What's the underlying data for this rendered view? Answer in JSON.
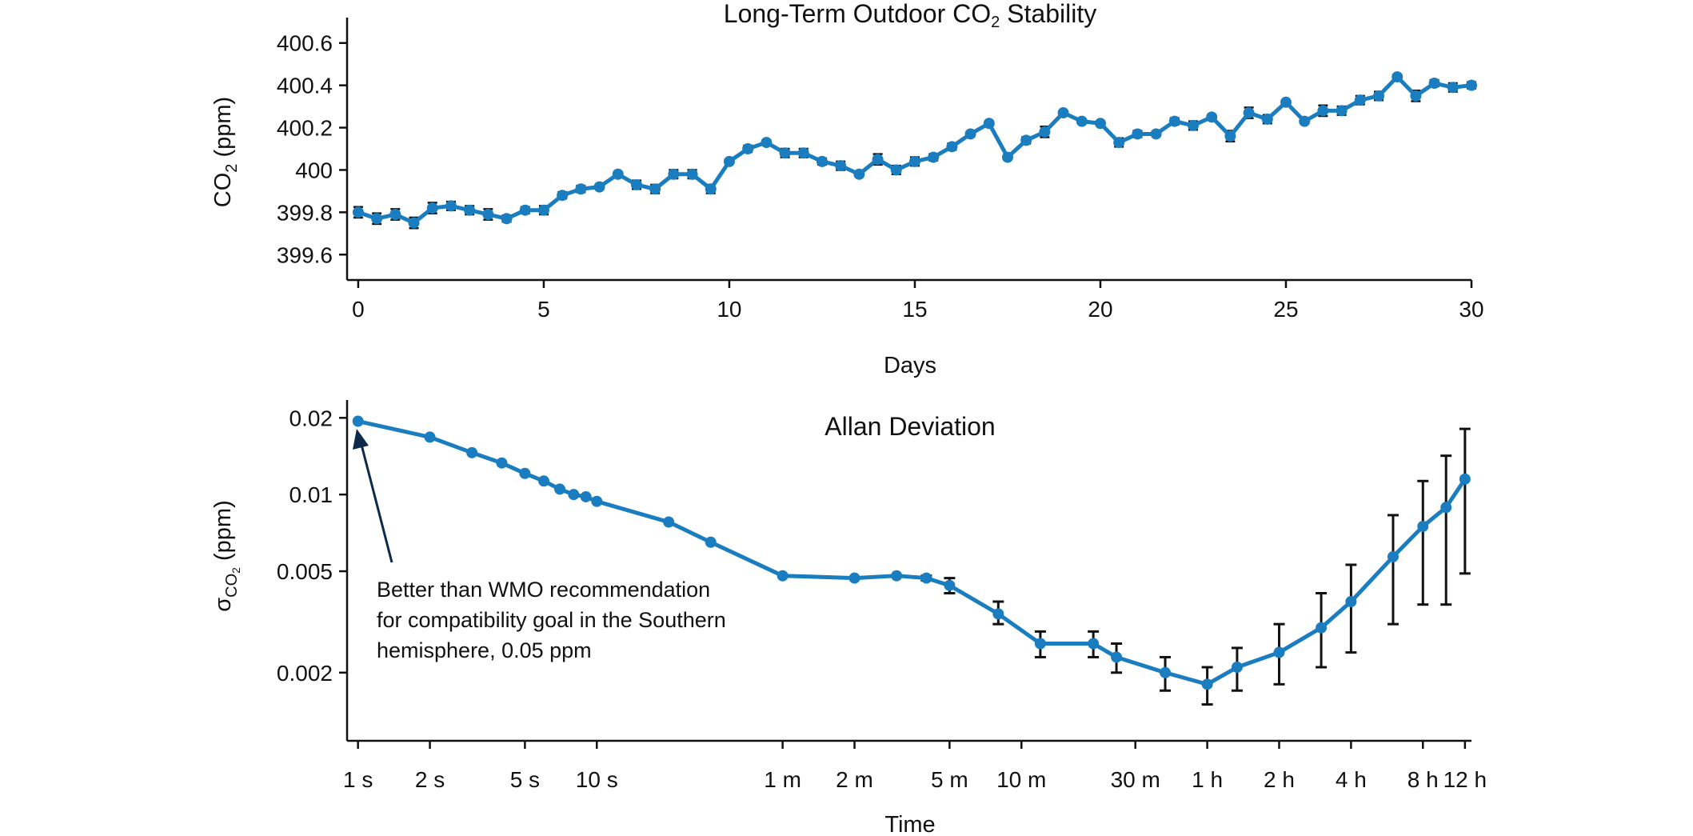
{
  "chart_data": [
    {
      "type": "line",
      "title": "Long-Term Outdoor CO₂ Stability",
      "xlabel": "Days",
      "ylabel": "CO₂ (ppm)",
      "xlim": [
        -0.3,
        30
      ],
      "ylim": [
        399.48,
        400.72
      ],
      "xticks": [
        0,
        5,
        10,
        15,
        20,
        25,
        30
      ],
      "xtick_labels": [
        "0",
        "5",
        "10",
        "15",
        "20",
        "25",
        "30"
      ],
      "yticks": [
        399.6,
        399.8,
        400,
        400.2,
        400.4,
        400.6
      ],
      "ytick_labels": [
        "399.6",
        "399.8",
        "400",
        "400.2",
        "400.4",
        "400.6"
      ],
      "color": "#1a7dc0",
      "grid": false,
      "series": [
        {
          "x": [
            0,
            0.5,
            1,
            1.5,
            2,
            2.5,
            3,
            3.5,
            4,
            4.5,
            5,
            5.5,
            6,
            6.5,
            7,
            7.5,
            8,
            8.5,
            9,
            9.5,
            10,
            10.5,
            11,
            11.5,
            12,
            12.5,
            13,
            13.5,
            14,
            14.5,
            15,
            15.5,
            16,
            16.5,
            17,
            17.5,
            18,
            18.5,
            19,
            19.5,
            20,
            20.5,
            21,
            21.5,
            22,
            22.5,
            23,
            23.5,
            24,
            24.5,
            25,
            25.5,
            26,
            26.5,
            27,
            27.5,
            28,
            28.5,
            29,
            29.5,
            30
          ],
          "y": [
            399.8,
            399.77,
            399.79,
            399.75,
            399.82,
            399.83,
            399.81,
            399.79,
            399.77,
            399.81,
            399.81,
            399.88,
            399.91,
            399.92,
            399.98,
            399.93,
            399.91,
            399.98,
            399.98,
            399.91,
            400.04,
            400.1,
            400.13,
            400.08,
            400.08,
            400.04,
            400.02,
            399.98,
            400.05,
            400.0,
            400.04,
            400.06,
            400.11,
            400.17,
            400.22,
            400.06,
            400.14,
            400.18,
            400.27,
            400.23,
            400.22,
            400.13,
            400.17,
            400.17,
            400.23,
            400.21,
            400.25,
            400.16,
            400.27,
            400.24,
            400.32,
            400.23,
            400.28,
            400.28,
            400.33,
            400.35,
            400.44,
            400.35,
            400.41,
            400.39,
            400.4
          ],
          "err": [
            0.025,
            0.025,
            0.025,
            0.025,
            0.025,
            0.02,
            0.02,
            0.025,
            0.015,
            0.015,
            0.02,
            0.015,
            0.015,
            0.01,
            0.01,
            0.02,
            0.02,
            0.02,
            0.02,
            0.02,
            0.01,
            0.015,
            0.01,
            0.02,
            0.02,
            0.015,
            0.02,
            0.01,
            0.025,
            0.02,
            0.02,
            0.015,
            0.015,
            0.01,
            0.01,
            0.01,
            0.015,
            0.025,
            0.01,
            0.01,
            0.01,
            0.02,
            0.015,
            0.01,
            0.015,
            0.02,
            0.01,
            0.025,
            0.025,
            0.02,
            0.01,
            0.01,
            0.025,
            0.02,
            0.02,
            0.02,
            0.01,
            0.025,
            0.015,
            0.02,
            0.015
          ]
        }
      ]
    },
    {
      "type": "line",
      "title": "Allan Deviation",
      "xlabel": "Time",
      "ylabel": "σCO₂ (ppm)",
      "xscale": "log",
      "yscale": "log",
      "xlim_seconds": [
        0.9,
        46000
      ],
      "ylim": [
        0.00108,
        0.0235
      ],
      "xticks_seconds": [
        1,
        2,
        5,
        10,
        60,
        120,
        300,
        600,
        1800,
        3600,
        7200,
        14400,
        28800,
        43200
      ],
      "xtick_labels": [
        "1 s",
        "2 s",
        "5 s",
        "10 s",
        "1 m",
        "2 m",
        "5 m",
        "10 m",
        "30 m",
        "1 h",
        "2 h",
        "4 h",
        "8 h",
        "12 h"
      ],
      "yticks": [
        0.002,
        0.005,
        0.01,
        0.02
      ],
      "ytick_labels": [
        "0.002",
        "0.005",
        "0.01",
        "0.02"
      ],
      "color": "#1a7dc0",
      "grid": false,
      "series": [
        {
          "x_seconds": [
            1,
            2,
            3,
            4,
            5,
            6,
            7,
            8,
            9,
            10,
            20,
            30,
            60,
            120,
            180,
            240,
            300,
            480,
            720,
            1200,
            1500,
            2400,
            3600,
            4800,
            7200,
            10800,
            14400,
            21600,
            28800,
            36000,
            43200
          ],
          "y": [
            0.0194,
            0.0168,
            0.0146,
            0.0133,
            0.0121,
            0.0113,
            0.0105,
            0.01,
            0.0098,
            0.0094,
            0.0078,
            0.0065,
            0.0048,
            0.0047,
            0.0048,
            0.0047,
            0.0044,
            0.0034,
            0.0026,
            0.0026,
            0.0023,
            0.002,
            0.0018,
            0.0021,
            0.0024,
            0.003,
            0.0038,
            0.0057,
            0.0075,
            0.0089,
            0.0115
          ],
          "err_lower": [
            0,
            0,
            0,
            0,
            0,
            0,
            0,
            0,
            0,
            0,
            0,
            0,
            0,
            0,
            0,
            0.0001,
            0.0003,
            0.0003,
            0.0003,
            0.0003,
            0.0003,
            0.0003,
            0.0003,
            0.0004,
            0.0006,
            0.0009,
            0.0014,
            0.0026,
            0.0038,
            0.0052,
            0.0066
          ],
          "err_upper": [
            0,
            0,
            0,
            0,
            0,
            0,
            0,
            0,
            0,
            0,
            0,
            0,
            0,
            0,
            0,
            0.0001,
            0.0003,
            0.0004,
            0.0003,
            0.0003,
            0.0003,
            0.0003,
            0.0003,
            0.0004,
            0.0007,
            0.0011,
            0.0015,
            0.0026,
            0.0038,
            0.0053,
            0.0066
          ]
        }
      ],
      "annotation": {
        "lines": [
          "Better than WMO recommendation",
          "for compatibility goal in the Southern",
          "hemisphere, 0.05 ppm"
        ],
        "arrow_color": "#0d2a4a"
      }
    }
  ]
}
